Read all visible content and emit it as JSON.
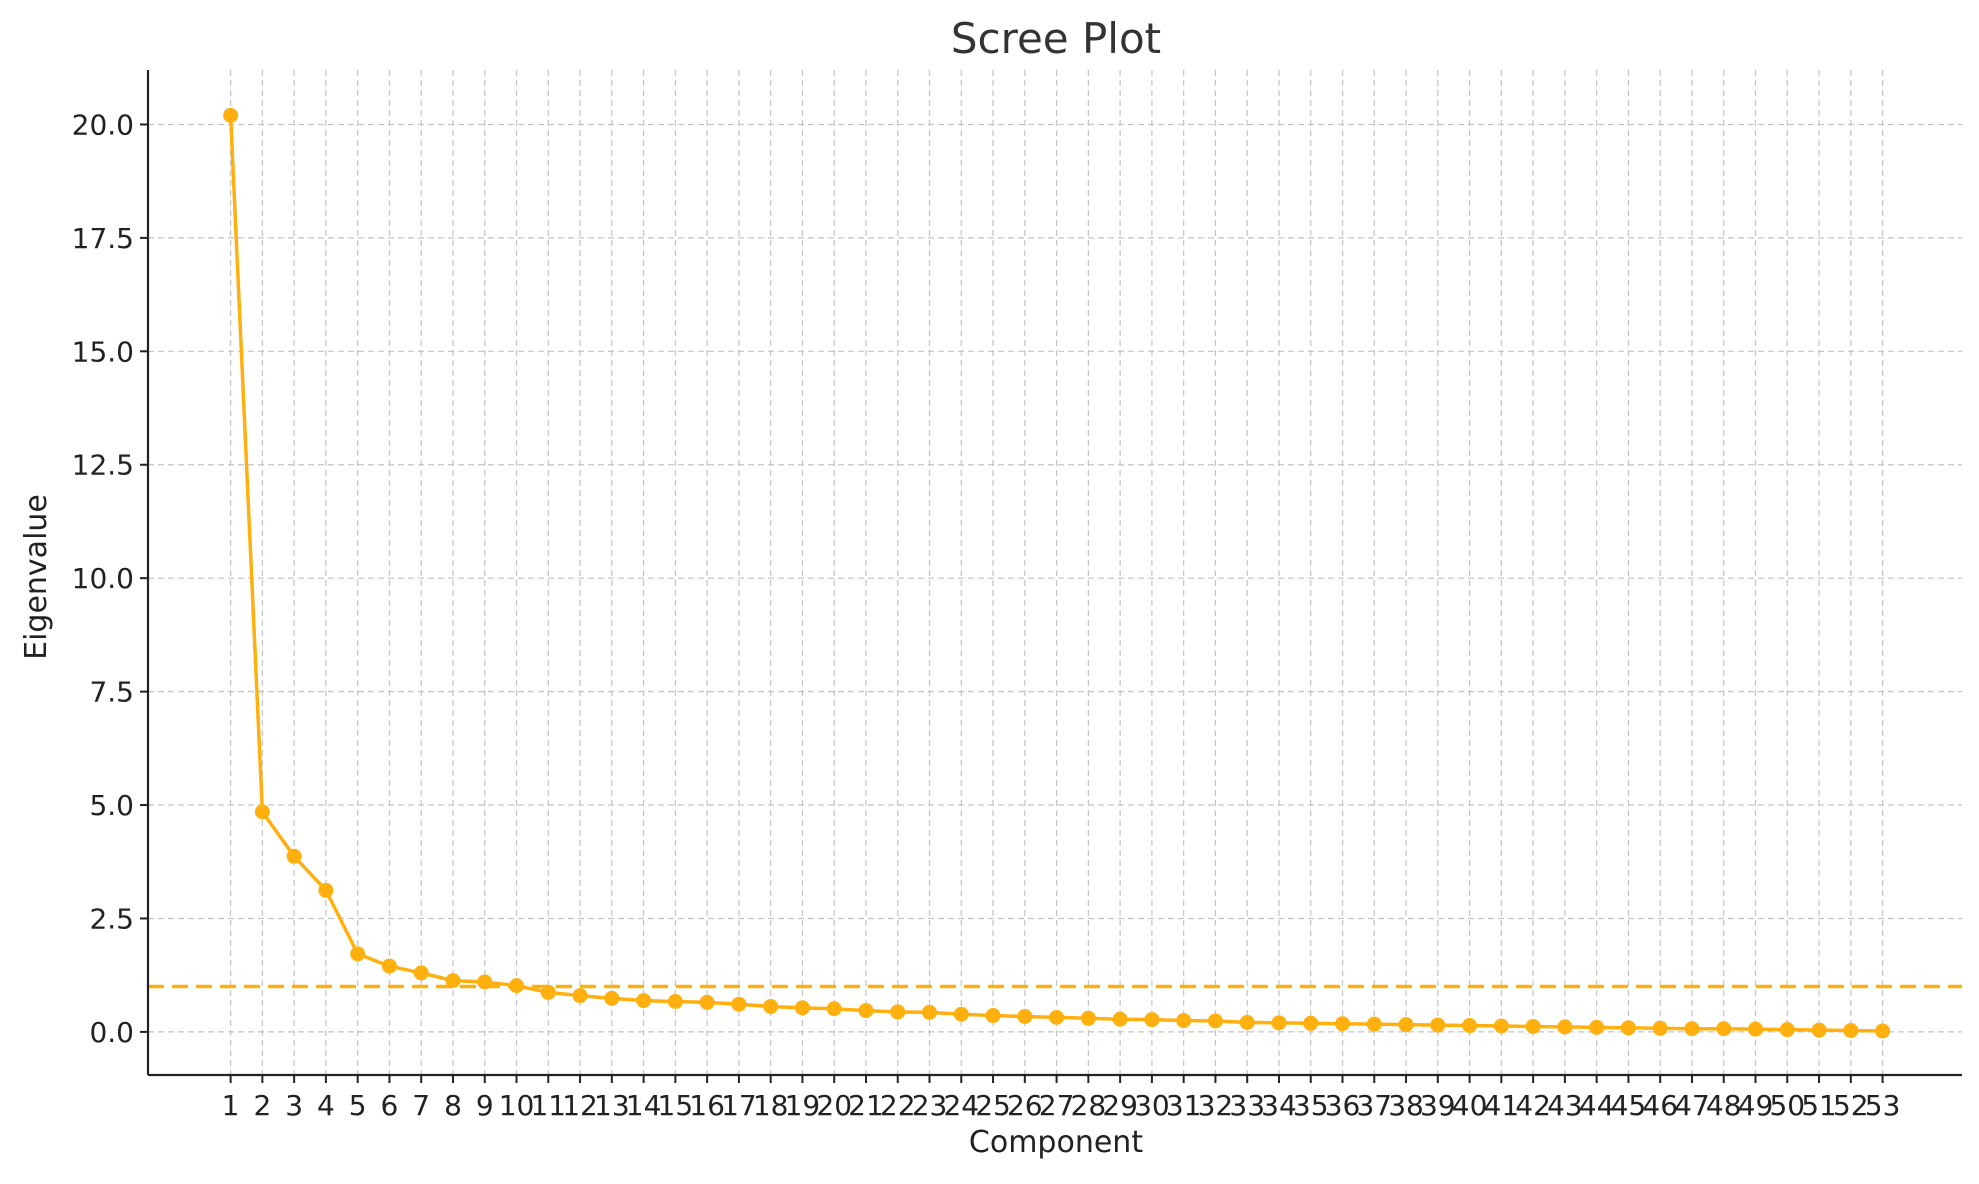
{
  "chart_data": {
    "type": "line",
    "title": "Scree Plot",
    "xlabel": "Component",
    "ylabel": "Eigenvalue",
    "x": [
      1,
      2,
      3,
      4,
      5,
      6,
      7,
      8,
      9,
      10,
      11,
      12,
      13,
      14,
      15,
      16,
      17,
      18,
      19,
      20,
      21,
      22,
      23,
      24,
      25,
      26,
      27,
      28,
      29,
      30,
      31,
      32,
      33,
      34,
      35,
      36,
      37,
      38,
      39,
      40,
      41,
      42,
      43,
      44,
      45,
      46,
      47,
      48,
      49,
      50,
      51,
      52,
      53
    ],
    "series": [
      {
        "values": [
          20.2,
          4.85,
          3.87,
          3.12,
          1.72,
          1.45,
          1.3,
          1.13,
          1.1,
          1.02,
          0.87,
          0.8,
          0.74,
          0.69,
          0.67,
          0.65,
          0.61,
          0.56,
          0.53,
          0.51,
          0.47,
          0.44,
          0.43,
          0.39,
          0.36,
          0.34,
          0.32,
          0.3,
          0.28,
          0.27,
          0.25,
          0.24,
          0.21,
          0.2,
          0.19,
          0.18,
          0.17,
          0.16,
          0.15,
          0.14,
          0.13,
          0.12,
          0.11,
          0.1,
          0.09,
          0.08,
          0.07,
          0.07,
          0.06,
          0.05,
          0.04,
          0.03,
          0.02
        ],
        "color": "#FFB00F"
      }
    ],
    "reference_line": {
      "y": 1.0,
      "style": "dashed",
      "color": "#FFB00F"
    },
    "yticks": [
      "0.0",
      "2.5",
      "5.0",
      "7.5",
      "10.0",
      "12.5",
      "15.0",
      "17.5",
      "20.0"
    ],
    "ylim": [
      -0.95,
      21.2
    ],
    "xlim": [
      -1.6,
      55.5
    ],
    "grid": true
  }
}
